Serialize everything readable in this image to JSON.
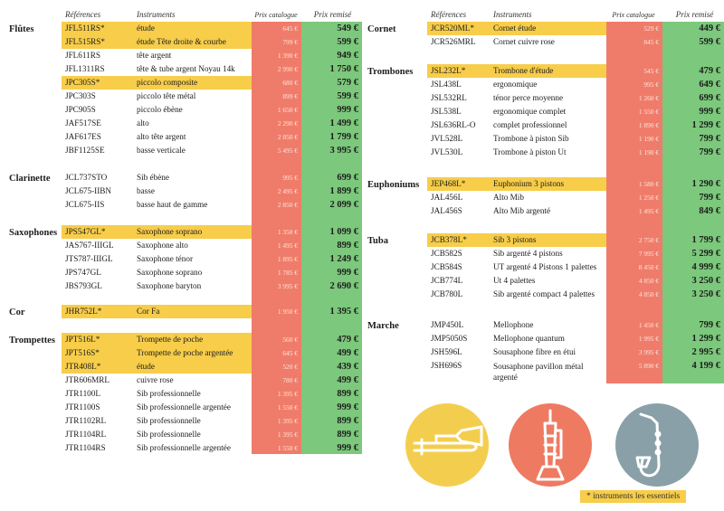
{
  "headers": {
    "ref": "Références",
    "instr": "Instruments",
    "cat": "Prix catalogue",
    "rem": "Prix remisé"
  },
  "colors": {
    "highlight": "#f7cd4a",
    "catalog": "#ef7c6a",
    "remise": "#7cc87c"
  },
  "left": [
    {
      "name": "Flûtes",
      "items": [
        {
          "ref": "JFL511RS*",
          "instr": "étude",
          "cat": "645 €",
          "rem": "549 €",
          "hl": true
        },
        {
          "ref": "JFL515RS*",
          "instr": "étude Tête droite & courbe",
          "cat": "799 €",
          "rem": "599 €",
          "hl": true
        },
        {
          "ref": "JFL611RS",
          "instr": "tête argent",
          "cat": "1 390 €",
          "rem": "949 €",
          "hl": false
        },
        {
          "ref": "JFL1311RS",
          "instr": "tête & tube argent Noyau 14k",
          "cat": "2 990 €",
          "rem": "1 750 €",
          "hl": false
        },
        {
          "ref": "JPC305S*",
          "instr": "piccolo composite",
          "cat": "680 €",
          "rem": "579 €",
          "hl": true
        },
        {
          "ref": "JPC303S",
          "instr": "piccolo tête métal",
          "cat": "899 €",
          "rem": "599 €",
          "hl": false
        },
        {
          "ref": "JPC905S",
          "instr": "piccolo ébène",
          "cat": "1 650 €",
          "rem": "999 €",
          "hl": false
        },
        {
          "ref": "JAF517SE",
          "instr": "alto",
          "cat": "2 290 €",
          "rem": "1 499 €",
          "hl": false
        },
        {
          "ref": "JAF617ES",
          "instr": "alto tête argent",
          "cat": "2 850 €",
          "rem": "1 799 €",
          "hl": false
        },
        {
          "ref": "JBF1125SE",
          "instr": "basse verticale",
          "cat": "5 495 €",
          "rem": "3 995 €",
          "hl": false
        }
      ]
    },
    {
      "name": "Clarinette",
      "items": [
        {
          "ref": "JCL737STO",
          "instr": "Sib ébène",
          "cat": "995 €",
          "rem": "699 €",
          "hl": false
        },
        {
          "ref": "JCL675-IIBN",
          "instr": "basse",
          "cat": "2 495 €",
          "rem": "1 899 €",
          "hl": false
        },
        {
          "ref": "JCL675-IIS",
          "instr": "basse haut de gamme",
          "cat": "2 850 €",
          "rem": "2 099 €",
          "hl": false
        }
      ]
    },
    {
      "name": "Saxophones",
      "items": [
        {
          "ref": "JPS547GL*",
          "instr": "Saxophone soprano",
          "cat": "1 350 €",
          "rem": "1 099 €",
          "hl": true
        },
        {
          "ref": "JAS767-IIIGL",
          "instr": "Saxophone alto",
          "cat": "1 495 €",
          "rem": "899 €",
          "hl": false
        },
        {
          "ref": "JTS787-IIIGL",
          "instr": "Saxophone ténor",
          "cat": "1 895 €",
          "rem": "1 249 €",
          "hl": false
        },
        {
          "ref": "JPS747GL",
          "instr": "Saxophone soprano",
          "cat": "1 785 €",
          "rem": "999 €",
          "hl": false
        },
        {
          "ref": "JBS793GL",
          "instr": "Saxophone baryton",
          "cat": "3 995 €",
          "rem": "2 690 €",
          "hl": false
        }
      ]
    },
    {
      "name": "Cor",
      "items": [
        {
          "ref": "JHR752L*",
          "instr": "Cor Fa",
          "cat": "1 950 €",
          "rem": "1 395 €",
          "hl": true
        }
      ]
    },
    {
      "name": "Trompettes",
      "items": [
        {
          "ref": "JPT516L*",
          "instr": "Trompette de poche",
          "cat": "560 €",
          "rem": "479 €",
          "hl": true
        },
        {
          "ref": "JPT516S*",
          "instr": "Trompette de poche argentée",
          "cat": "645 €",
          "rem": "499 €",
          "hl": true
        },
        {
          "ref": "JTR408L*",
          "instr": "étude",
          "cat": "520 €",
          "rem": "439 €",
          "hl": true
        },
        {
          "ref": "JTR606MRL",
          "instr": "cuivre rose",
          "cat": "780 €",
          "rem": "499 €",
          "hl": false
        },
        {
          "ref": "JTR1100L",
          "instr": "Sib professionnelle",
          "cat": "1 395 €",
          "rem": "899 €",
          "hl": false
        },
        {
          "ref": "JTR1100S",
          "instr": "Sib professionnelle argentée",
          "cat": "1 550 €",
          "rem": "999 €",
          "hl": false
        },
        {
          "ref": "JTR1102RL",
          "instr": "Sib professionnelle",
          "cat": "1 395 €",
          "rem": "899 €",
          "hl": false
        },
        {
          "ref": "JTR1104RL",
          "instr": "Sib professionnelle",
          "cat": "1 395 €",
          "rem": "899 €",
          "hl": false
        },
        {
          "ref": "JTR1104RS",
          "instr": "Sib professionnelle argentée",
          "cat": "1 550 €",
          "rem": "999 €",
          "hl": false
        }
      ]
    }
  ],
  "right": [
    {
      "name": "Cornet",
      "items": [
        {
          "ref": "JCR520ML*",
          "instr": "Cornet étude",
          "cat": "529 €",
          "rem": "449 €",
          "hl": true
        },
        {
          "ref": "JCR526MRL",
          "instr": "Cornet cuivre rose",
          "cat": "845 €",
          "rem": "599 €",
          "hl": false
        }
      ]
    },
    {
      "name": "Trombones",
      "items": [
        {
          "ref": "JSL232L*",
          "instr": "Trombone d'étude",
          "cat": "545 €",
          "rem": "479 €",
          "hl": true
        },
        {
          "ref": "JSL438L",
          "instr": "ergonomique",
          "cat": "995 €",
          "rem": "649 €",
          "hl": false
        },
        {
          "ref": "JSL532RL",
          "instr": "ténor perce moyenne",
          "cat": "1 260 €",
          "rem": "699 €",
          "hl": false
        },
        {
          "ref": "JSL538L",
          "instr": "ergonomique complet",
          "cat": "1 550 €",
          "rem": "999 €",
          "hl": false
        },
        {
          "ref": "JSL636RL-O",
          "instr": "complet professionnel",
          "cat": "1 890 €",
          "rem": "1 299 €",
          "hl": false
        },
        {
          "ref": "JVL528L",
          "instr": "Trombone à piston Sib",
          "cat": "1 190 €",
          "rem": "799 €",
          "hl": false
        },
        {
          "ref": "JVL530L",
          "instr": "Trombone à piston Ut",
          "cat": "1 190 €",
          "rem": "799 €",
          "hl": false
        }
      ]
    },
    {
      "name": "Euphoniums",
      "items": [
        {
          "ref": "JEP468L*",
          "instr": "Euphonium 3 pistons",
          "cat": "1 580 €",
          "rem": "1 290 €",
          "hl": true
        },
        {
          "ref": "JAL456L",
          "instr": "Alto Mib",
          "cat": "1 250 €",
          "rem": "799 €",
          "hl": false
        },
        {
          "ref": "JAL456S",
          "instr": "Alto Mib argenté",
          "cat": "1 495 €",
          "rem": "849 €",
          "hl": false
        }
      ]
    },
    {
      "name": "Tuba",
      "items": [
        {
          "ref": "JCB378L*",
          "instr": "Sib 3 pistons",
          "cat": "2 750 €",
          "rem": "1 799 €",
          "hl": true
        },
        {
          "ref": "JCB582S",
          "instr": "Sib argenté 4 pistons",
          "cat": "7 995 €",
          "rem": "5 299 €",
          "hl": false
        },
        {
          "ref": "JCB584S",
          "instr": "UT argenté 4 Pistons 1 palettes",
          "cat": "8 450 €",
          "rem": "4 999 €",
          "hl": false
        },
        {
          "ref": "JCB774L",
          "instr": "Ut 4 palettes",
          "cat": "4 850 €",
          "rem": "3 250 €",
          "hl": false
        },
        {
          "ref": "JCB780L",
          "instr": "Sib argenté compact 4 palettes",
          "cat": "4 850 €",
          "rem": "3 250 €",
          "hl": false
        }
      ]
    },
    {
      "name": "Marche",
      "items": [
        {
          "ref": "JMP450L",
          "instr": "Mellophone",
          "cat": "1 450 €",
          "rem": "799 €",
          "hl": false
        },
        {
          "ref": "JMP5050S",
          "instr": "Mellophone quantum",
          "cat": "1 995 €",
          "rem": "1 299 €",
          "hl": false
        },
        {
          "ref": "JSH596L",
          "instr": "Sousaphone fibre en étui",
          "cat": "3 995 €",
          "rem": "2 995 €",
          "hl": false
        },
        {
          "ref": "JSH696S",
          "instr": "Sousaphone pavillon métal argenté",
          "cat": "5 890 €",
          "rem": "4 199 €",
          "hl": false
        }
      ]
    }
  ],
  "icons": [
    {
      "name": "trombone-icon",
      "color": "#f3ce4e"
    },
    {
      "name": "trumpet-icon",
      "color": "#ee7a62"
    },
    {
      "name": "saxophone-icon",
      "color": "#8aa0a8"
    }
  ],
  "footnote": "* instruments les essentiels"
}
